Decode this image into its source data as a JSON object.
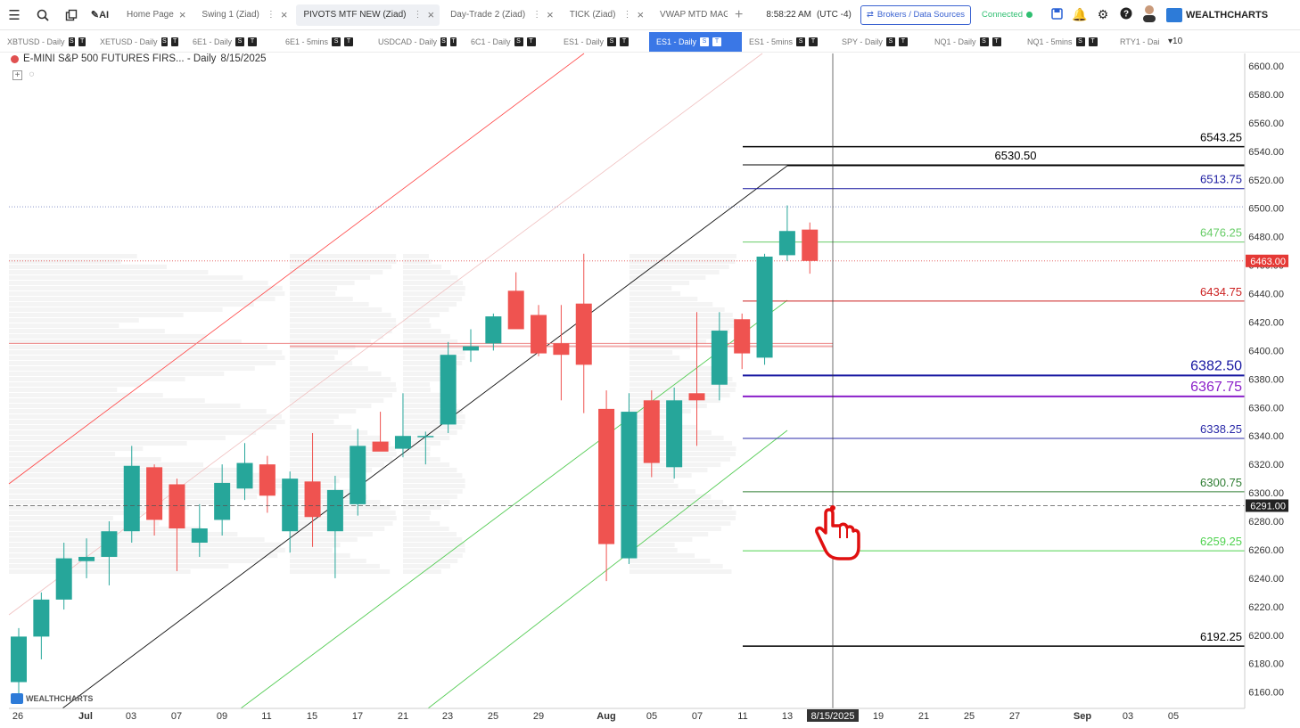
{
  "topbar": {
    "tabs": [
      {
        "label": "Home Page",
        "active": false
      },
      {
        "label": "Swing 1 (Ziad)",
        "active": false
      },
      {
        "label": "PIVOTS MTF NEW (Ziad)",
        "active": true
      },
      {
        "label": "Day-Trade 2 (Ziad)",
        "active": false
      },
      {
        "label": "TICK (Ziad)",
        "active": false
      },
      {
        "label": "VWAP MTD MAG",
        "active": false
      }
    ],
    "clock": "8:58:22 AM",
    "timezone": "(UTC -4)",
    "brokers_label": "Brokers / Data Sources",
    "connection_status": "Connected",
    "brand": "WEALTHCHARTS",
    "icons": [
      "menu-icon",
      "search-icon",
      "copy-icon",
      "ai-icon",
      "save-icon",
      "bell-icon",
      "gear-icon",
      "help-icon",
      "user-avatar"
    ]
  },
  "symbols": {
    "items": [
      {
        "label": "XBTUSD - Daily"
      },
      {
        "label": "XETUSD - Daily"
      },
      {
        "label": "6E1 - Daily"
      },
      {
        "label": "6E1 - 5mins"
      },
      {
        "label": "USDCAD - Daily"
      },
      {
        "label": "6C1 - Daily"
      },
      {
        "label": "ES1 - Daily"
      },
      {
        "label": "ES1 - Daily",
        "active": true
      },
      {
        "label": "ES1 - 5mins"
      },
      {
        "label": "SPY - Daily"
      },
      {
        "label": "NQ1 - Daily"
      },
      {
        "label": "NQ1 - 5mins"
      },
      {
        "label": "RTY1 - Dai"
      }
    ],
    "badge_s": "S",
    "badge_t": "T",
    "more_label": "▾10"
  },
  "chart": {
    "title": "E-MINI S&P 500 FUTURES FIRS... - Daily",
    "date": "8/15/2025",
    "watermark": "WEALTHCHARTS",
    "cursor_date_label": "8/15/2025",
    "last_price": "6463.00",
    "cursor_price": "6291.00",
    "colors": {
      "up": "#26a69a",
      "down": "#ef5350",
      "bg": "#ffffff"
    }
  },
  "chart_data": {
    "type": "candlestick",
    "title": "E-MINI S&P 500 FUTURES FIRS... - Daily",
    "y_ticks": [
      6160,
      6180,
      6200,
      6220,
      6240,
      6260,
      6280,
      6300,
      6320,
      6340,
      6360,
      6380,
      6400,
      6420,
      6440,
      6460,
      6480,
      6500,
      6520,
      6540,
      6560,
      6580,
      6600
    ],
    "ylim": [
      6150,
      6610
    ],
    "x_ticks": [
      "26",
      "Jul",
      "03",
      "07",
      "09",
      "11",
      "15",
      "17",
      "21",
      "23",
      "25",
      "29",
      "Aug",
      "05",
      "07",
      "11",
      "13",
      "19",
      "21",
      "25",
      "27",
      "Sep",
      "03",
      "05"
    ],
    "candles": [
      {
        "date": "06-26",
        "o": 6167,
        "h": 6205,
        "l": 6155,
        "c": 6199
      },
      {
        "date": "06-27",
        "o": 6199,
        "h": 6230,
        "l": 6183,
        "c": 6225
      },
      {
        "date": "06-30",
        "o": 6225,
        "h": 6265,
        "l": 6218,
        "c": 6254
      },
      {
        "date": "07-01",
        "o": 6252,
        "h": 6268,
        "l": 6240,
        "c": 6255
      },
      {
        "date": "07-02",
        "o": 6255,
        "h": 6280,
        "l": 6235,
        "c": 6273
      },
      {
        "date": "07-03",
        "o": 6273,
        "h": 6333,
        "l": 6265,
        "c": 6319
      },
      {
        "date": "07-07",
        "o": 6318,
        "h": 6320,
        "l": 6270,
        "c": 6281
      },
      {
        "date": "07-08",
        "o": 6306,
        "h": 6310,
        "l": 6245,
        "c": 6275
      },
      {
        "date": "07-09",
        "o": 6265,
        "h": 6292,
        "l": 6255,
        "c": 6275
      },
      {
        "date": "07-10",
        "o": 6281,
        "h": 6320,
        "l": 6270,
        "c": 6307
      },
      {
        "date": "07-11",
        "o": 6303,
        "h": 6335,
        "l": 6295,
        "c": 6321
      },
      {
        "date": "07-14",
        "o": 6320,
        "h": 6326,
        "l": 6286,
        "c": 6298
      },
      {
        "date": "07-15",
        "o": 6273,
        "h": 6315,
        "l": 6258,
        "c": 6310
      },
      {
        "date": "07-16",
        "o": 6308,
        "h": 6342,
        "l": 6262,
        "c": 6283
      },
      {
        "date": "07-17",
        "o": 6273,
        "h": 6312,
        "l": 6240,
        "c": 6302
      },
      {
        "date": "07-18",
        "o": 6292,
        "h": 6345,
        "l": 6284,
        "c": 6333
      },
      {
        "date": "07-21",
        "o": 6336,
        "h": 6357,
        "l": 6330,
        "c": 6329
      },
      {
        "date": "07-22",
        "o": 6331,
        "h": 6370,
        "l": 6325,
        "c": 6340
      },
      {
        "date": "07-23",
        "o": 6340,
        "h": 6343,
        "l": 6320,
        "c": 6340
      },
      {
        "date": "07-24",
        "o": 6348,
        "h": 6406,
        "l": 6342,
        "c": 6397
      },
      {
        "date": "07-25",
        "o": 6400,
        "h": 6415,
        "l": 6392,
        "c": 6403
      },
      {
        "date": "07-28",
        "o": 6405,
        "h": 6426,
        "l": 6400,
        "c": 6424
      },
      {
        "date": "07-29",
        "o": 6442,
        "h": 6455,
        "l": 6418,
        "c": 6415
      },
      {
        "date": "07-30",
        "o": 6425,
        "h": 6432,
        "l": 6396,
        "c": 6398
      },
      {
        "date": "07-31",
        "o": 6405,
        "h": 6432,
        "l": 6365,
        "c": 6397
      },
      {
        "date": "08-01",
        "o": 6433,
        "h": 6468,
        "l": 6356,
        "c": 6390
      },
      {
        "date": "08-01b",
        "o": 6359,
        "h": 6372,
        "l": 6238,
        "c": 6264
      },
      {
        "date": "08-04",
        "o": 6254,
        "h": 6370,
        "l": 6250,
        "c": 6357
      },
      {
        "date": "08-05",
        "o": 6365,
        "h": 6372,
        "l": 6311,
        "c": 6321
      },
      {
        "date": "08-06",
        "o": 6318,
        "h": 6374,
        "l": 6310,
        "c": 6365
      },
      {
        "date": "08-07",
        "o": 6370,
        "h": 6427,
        "l": 6333,
        "c": 6365
      },
      {
        "date": "08-08",
        "o": 6376,
        "h": 6427,
        "l": 6365,
        "c": 6414
      },
      {
        "date": "08-11",
        "o": 6422,
        "h": 6426,
        "l": 6387,
        "c": 6398
      },
      {
        "date": "08-12",
        "o": 6395,
        "h": 6468,
        "l": 6390,
        "c": 6466
      },
      {
        "date": "08-13",
        "o": 6467,
        "h": 6502,
        "l": 6463,
        "c": 6484
      },
      {
        "date": "08-14",
        "o": 6485,
        "h": 6490,
        "l": 6454,
        "c": 6463
      }
    ],
    "levels": [
      {
        "value": 6543.25,
        "label": "6543.25",
        "color": "#000000"
      },
      {
        "value": 6530.5,
        "label": "6530.50",
        "color": "#000000"
      },
      {
        "value": 6513.75,
        "label": "6513.75",
        "color": "#1a1aa0"
      },
      {
        "value": 6476.25,
        "label": "6476.25",
        "color": "#66cc66"
      },
      {
        "value": 6434.75,
        "label": "6434.75",
        "color": "#cc2222"
      },
      {
        "value": 6382.5,
        "label": "6382.50",
        "color": "#1515a0"
      },
      {
        "value": 6367.75,
        "label": "6367.75",
        "color": "#8a1fc9"
      },
      {
        "value": 6338.25,
        "label": "6338.25",
        "color": "#2a2aa8"
      },
      {
        "value": 6300.75,
        "label": "6300.75",
        "color": "#2e7d32"
      },
      {
        "value": 6259.25,
        "label": "6259.25",
        "color": "#4fd24f"
      },
      {
        "value": 6192.25,
        "label": "6192.25",
        "color": "#000000"
      }
    ]
  }
}
